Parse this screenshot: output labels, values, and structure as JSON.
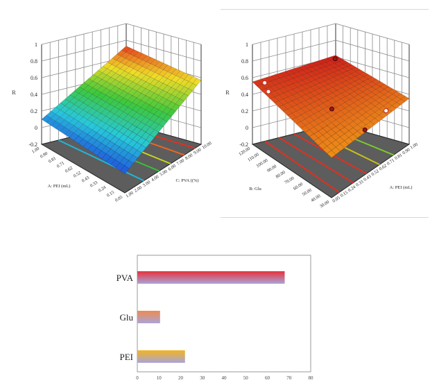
{
  "chart_data": [
    {
      "type": "surface3d",
      "zlabel": "R",
      "z_ticks": [
        "1",
        "0.8",
        "0.6",
        "0.4",
        "0.2",
        "0",
        "-0.2"
      ],
      "left_axis_label": "A: PEI (mL)",
      "left_axis_ticks": [
        "1.00",
        "0.90",
        "0.81",
        "0.71",
        "0.62",
        "0.52",
        "0.43",
        "0.33",
        "0.24",
        "0.15",
        "0.05"
      ],
      "right_axis_label": "C: PVA ((%)",
      "right_axis_ticks": [
        "1.00",
        "2.00",
        "3.00",
        "4.00",
        "5.00",
        "6.00",
        "7.00",
        "8.00",
        "9.00",
        "10.00"
      ],
      "surface_corners": {
        "left_front": 0.1,
        "right_front": 0.03,
        "right_back": 0.57,
        "left_back": 0.73
      }
    },
    {
      "type": "surface3d",
      "zlabel": "R",
      "z_ticks": [
        "1",
        "0.8",
        "0.6",
        "0.4",
        "0.2",
        "0",
        "-0.2"
      ],
      "left_axis_label": "B: Glu",
      "left_axis_ticks": [
        "120.00",
        "110.00",
        "100.00",
        "90.00",
        "80.00",
        "70.00",
        "60.00",
        "50.00",
        "40.00",
        "30.00"
      ],
      "right_axis_label": "A: PEI (mL)",
      "right_axis_ticks": [
        "0.05",
        "0.15",
        "0.24",
        "0.33",
        "0.43",
        "0.52",
        "0.62",
        "0.71",
        "0.81",
        "0.90",
        "1.00"
      ],
      "surface_corners": {
        "left_front": 0.55,
        "right_front": 0.28,
        "right_back": 0.35,
        "left_back": 0.62
      }
    },
    {
      "type": "bar",
      "orientation": "horizontal",
      "categories": [
        "PVA",
        "Glu",
        "PEI"
      ],
      "values": [
        68,
        10.5,
        22
      ],
      "xlim": [
        0,
        80
      ],
      "x_ticks": [
        "0",
        "10",
        "20",
        "30",
        "40",
        "50",
        "60",
        "70",
        "80"
      ],
      "colors": {
        "PVA": "#e8313a",
        "Glu": "#ef8a50",
        "PEI": "#f2b420",
        "bar_base": "#a9a4d8"
      }
    }
  ]
}
